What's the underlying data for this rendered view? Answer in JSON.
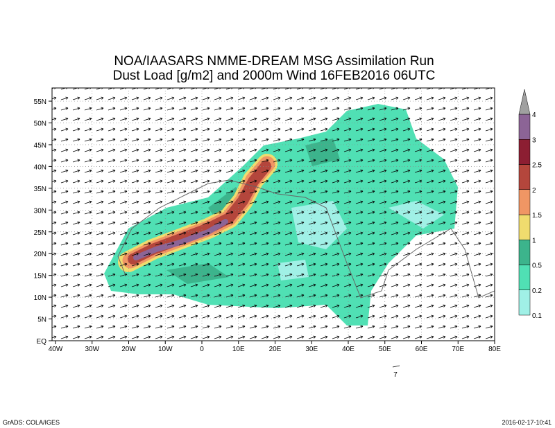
{
  "title": [
    "NOA/IAASARS NMME-DREAM MSG Assimilation Run",
    "Dust Load [g/m2] and 2000m Wind 16FEB2016 06UTC"
  ],
  "x_axis_labels": [
    "40W",
    "30W",
    "20W",
    "10W",
    "0",
    "10E",
    "20E",
    "30E",
    "40E",
    "50E",
    "60E",
    "70E",
    "80E"
  ],
  "y_axis_labels": [
    "EQ",
    "5N",
    "10N",
    "15N",
    "20N",
    "25N",
    "30N",
    "35N",
    "40N",
    "45N",
    "50N",
    "55N"
  ],
  "colorbar_labels": [
    "0.1",
    "0.2",
    "0.5",
    "1",
    "1.5",
    "2",
    "2.5",
    "3",
    "4"
  ],
  "vector_reference": "7",
  "footer": {
    "left": "GrADS: COLA/IGES",
    "right": "2016-02-17-10:41"
  }
}
